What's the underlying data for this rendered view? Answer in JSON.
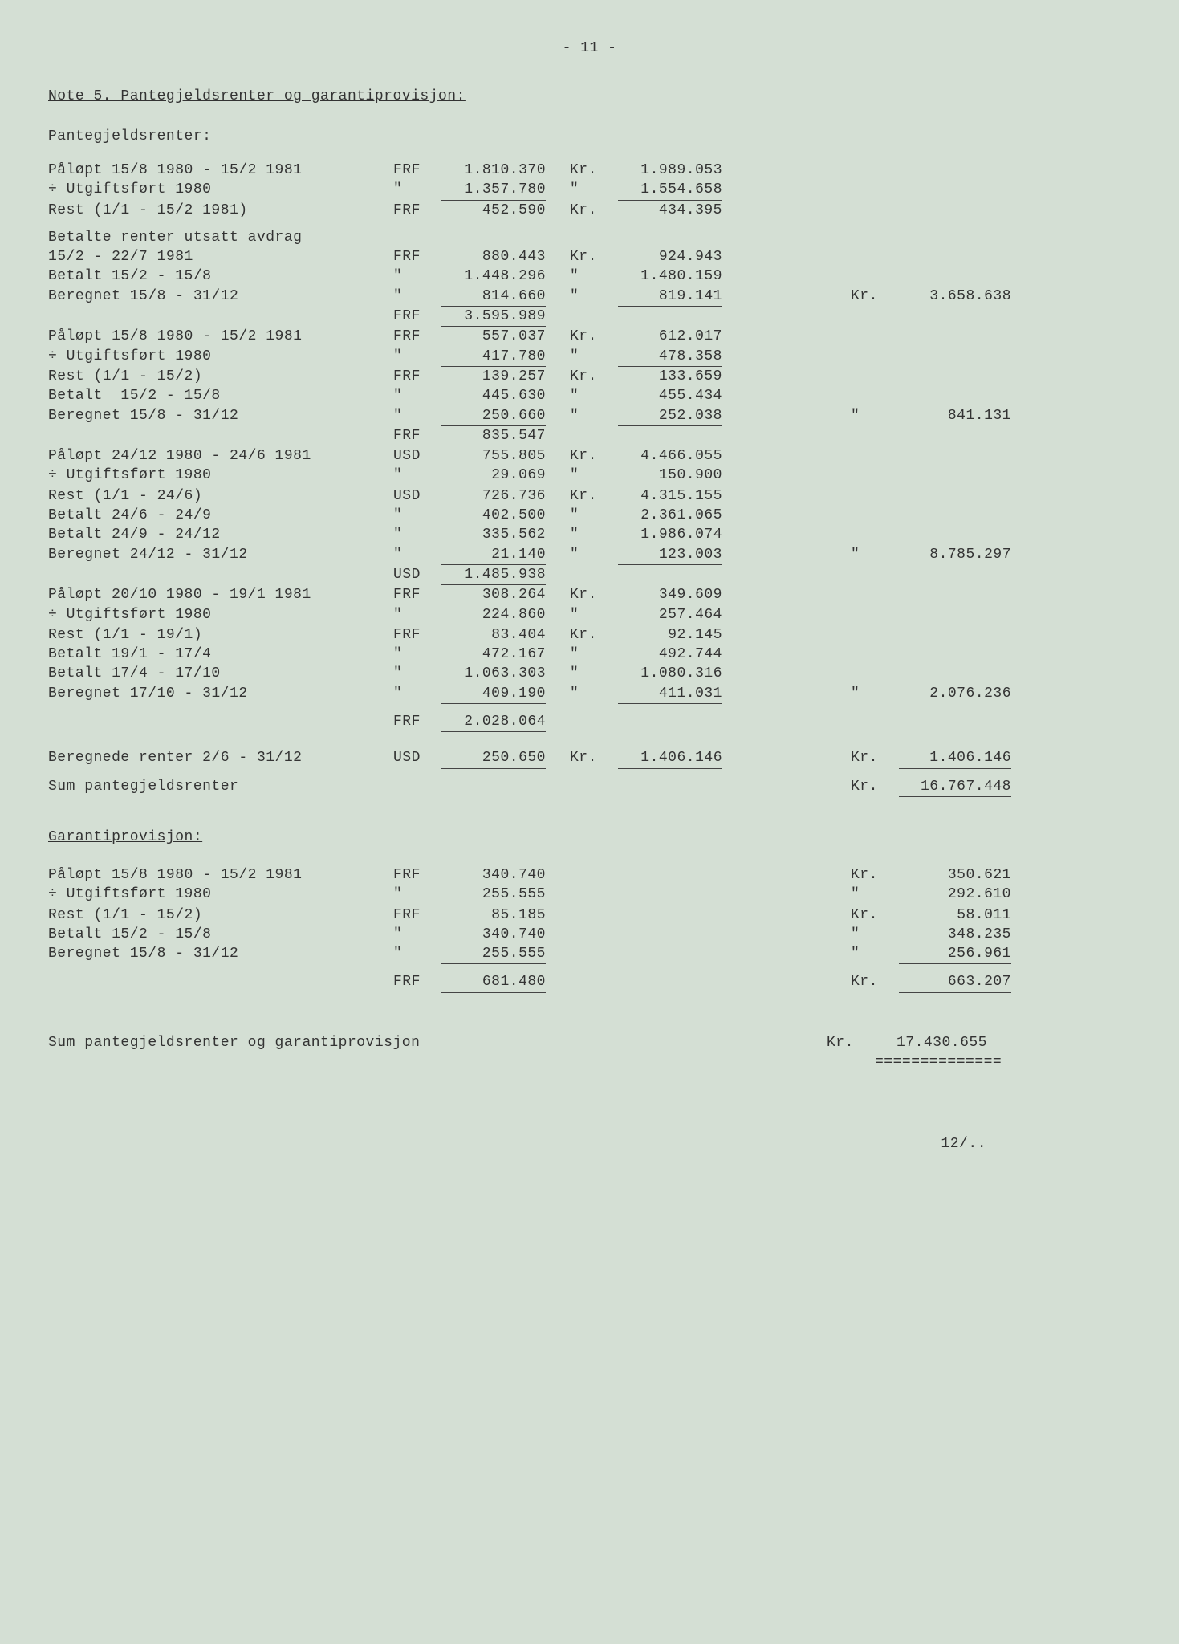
{
  "page_number": "- 11 -",
  "title": "Note 5.  Pantegjeldsrenter og garantiprovisjon:",
  "section1_head": "Pantegjeldsrenter:",
  "footer": "12/..",
  "font_family": "Courier New",
  "text_color": "#333333",
  "background_color": "#d4dfd4",
  "underline_color": "#444444",
  "rows": [
    {
      "d": "Påløpt 15/8 1980 - 15/2 1981",
      "c1": "FRF",
      "a1": "1.810.370",
      "c2": "Kr.",
      "a2": "1.989.053"
    },
    {
      "d": "÷ Utgiftsført 1980",
      "c1": "\"",
      "a1": "1.357.780",
      "a1u": true,
      "c2": "\"",
      "a2": "1.554.658",
      "a2u": true
    },
    {
      "d": "Rest (1/1 - 15/2 1981)",
      "c1": "FRF",
      "a1": "452.590",
      "c2": "Kr.",
      "a2": "434.395"
    },
    {
      "sp": true
    },
    {
      "d": "Betalte renter utsatt avdrag"
    },
    {
      "d": "15/2 - 22/7 1981",
      "c1": "FRF",
      "a1": "880.443",
      "c2": "Kr.",
      "a2": "924.943"
    },
    {
      "d": "Betalt 15/2 - 15/8",
      "c1": "\"",
      "a1": "1.448.296",
      "c2": "\"",
      "a2": "1.480.159"
    },
    {
      "d": "Beregnet 15/8 - 31/12",
      "c1": "\"",
      "a1": "814.660",
      "a1u": true,
      "c2": "\"",
      "a2": "819.141",
      "a2u": true,
      "c3": "Kr.",
      "a3": "3.658.638"
    },
    {
      "d": "",
      "c1": "FRF",
      "a1": "3.595.989",
      "a1u": true
    },
    {
      "d": "Påløpt 15/8 1980 - 15/2 1981",
      "c1": "FRF",
      "a1": "557.037",
      "c2": "Kr.",
      "a2": "612.017"
    },
    {
      "d": "÷ Utgiftsført 1980",
      "c1": "\"",
      "a1": "417.780",
      "a1u": true,
      "c2": "\"",
      "a2": "478.358",
      "a2u": true
    },
    {
      "d": "Rest (1/1 - 15/2)",
      "c1": "FRF",
      "a1": "139.257",
      "c2": "Kr.",
      "a2": "133.659"
    },
    {
      "d": "Betalt  15/2 - 15/8",
      "c1": "\"",
      "a1": "445.630",
      "c2": "\"",
      "a2": "455.434"
    },
    {
      "d": "Beregnet 15/8 - 31/12",
      "c1": "\"",
      "a1": "250.660",
      "a1u": true,
      "c2": "\"",
      "a2": "252.038",
      "a2u": true,
      "c3": "\"",
      "a3": "841.131"
    },
    {
      "d": "",
      "c1": "FRF",
      "a1": "835.547",
      "a1u": true
    },
    {
      "d": "Påløpt 24/12 1980 - 24/6 1981",
      "c1": "USD",
      "a1": "755.805",
      "c2": "Kr.",
      "a2": "4.466.055"
    },
    {
      "d": "÷ Utgiftsført 1980",
      "c1": "\"",
      "a1": "29.069",
      "a1u": true,
      "c2": "\"",
      "a2": "150.900",
      "a2u": true
    },
    {
      "d": "Rest (1/1 - 24/6)",
      "c1": "USD",
      "a1": "726.736",
      "c2": "Kr.",
      "a2": "4.315.155"
    },
    {
      "d": "Betalt 24/6 - 24/9",
      "c1": "\"",
      "a1": "402.500",
      "c2": "\"",
      "a2": "2.361.065"
    },
    {
      "d": "Betalt 24/9 - 24/12",
      "c1": "\"",
      "a1": "335.562",
      "c2": "\"",
      "a2": "1.986.074"
    },
    {
      "d": "Beregnet 24/12 - 31/12",
      "c1": "\"",
      "a1": "21.140",
      "a1u": true,
      "c2": "\"",
      "a2": "123.003",
      "a2u": true,
      "c3": "\"",
      "a3": "8.785.297"
    },
    {
      "d": "",
      "c1": "USD",
      "a1": "1.485.938",
      "a1u": true
    },
    {
      "d": "Påløpt 20/10 1980 - 19/1 1981",
      "c1": "FRF",
      "a1": "308.264",
      "c2": "Kr.",
      "a2": "349.609"
    },
    {
      "d": "÷ Utgiftsført 1980",
      "c1": "\"",
      "a1": "224.860",
      "a1u": true,
      "c2": "\"",
      "a2": "257.464",
      "a2u": true
    },
    {
      "d": "Rest (1/1 - 19/1)",
      "c1": "FRF",
      "a1": "83.404",
      "c2": "Kr.",
      "a2": "92.145"
    },
    {
      "d": "Betalt 19/1 - 17/4",
      "c1": "\"",
      "a1": "472.167",
      "c2": "\"",
      "a2": "492.744"
    },
    {
      "d": "Betalt 17/4 - 17/10",
      "c1": "\"",
      "a1": "1.063.303",
      "c2": "\"",
      "a2": "1.080.316"
    },
    {
      "d": "Beregnet 17/10 - 31/12",
      "c1": "\"",
      "a1": "409.190",
      "a1u": true,
      "c2": "\"",
      "a2": "411.031",
      "a2u": true,
      "c3": "\"",
      "a3": "2.076.236"
    },
    {
      "sp": true
    },
    {
      "d": "",
      "c1": "FRF",
      "a1": "2.028.064",
      "a1u": true
    },
    {
      "sp": true
    },
    {
      "sp": true
    },
    {
      "d": "Beregnede renter 2/6 - 31/12",
      "c1": "USD",
      "a1": "250.650",
      "a1u": true,
      "c2": "Kr.",
      "a2": "1.406.146",
      "a2u": true,
      "c3": "Kr.",
      "a3": "1.406.146",
      "a3u": true
    },
    {
      "sp": true
    },
    {
      "d": "Sum pantegjeldsrenter",
      "c3": "Kr.",
      "a3": "16.767.448",
      "a3u": true
    }
  ],
  "section2_head": "Garantiprovisjon:",
  "rows2": [
    {
      "d": "Påløpt 15/8 1980 - 15/2 1981",
      "c1": "FRF",
      "a1": "340.740",
      "c3": "Kr.",
      "a3": "350.621"
    },
    {
      "d": "÷ Utgiftsført 1980",
      "c1": "\"",
      "a1": "255.555",
      "a1u": true,
      "c3": "\"",
      "a3": "292.610",
      "a3u": true
    },
    {
      "d": "Rest (1/1 - 15/2)",
      "c1": "FRF",
      "a1": "85.185",
      "c3": "Kr.",
      "a3": "58.011"
    },
    {
      "d": "Betalt 15/2 - 15/8",
      "c1": "\"",
      "a1": "340.740",
      "c3": "\"",
      "a3": "348.235"
    },
    {
      "d": "Beregnet 15/8 - 31/12",
      "c1": "\"",
      "a1": "255.555",
      "a1u": true,
      "c3": "\"",
      "a3": "256.961",
      "a3u": true
    },
    {
      "sp": true
    },
    {
      "d": "",
      "c1": "FRF",
      "a1": "681.480",
      "a1u": true,
      "c3": "Kr.",
      "a3": "663.207",
      "a3u": true
    }
  ],
  "grand_total_label": "Sum pantegjeldsrenter og garantiprovisjon",
  "grand_total_cur": "Kr.",
  "grand_total_amt": "17.430.655",
  "dbl_underline": "=============="
}
